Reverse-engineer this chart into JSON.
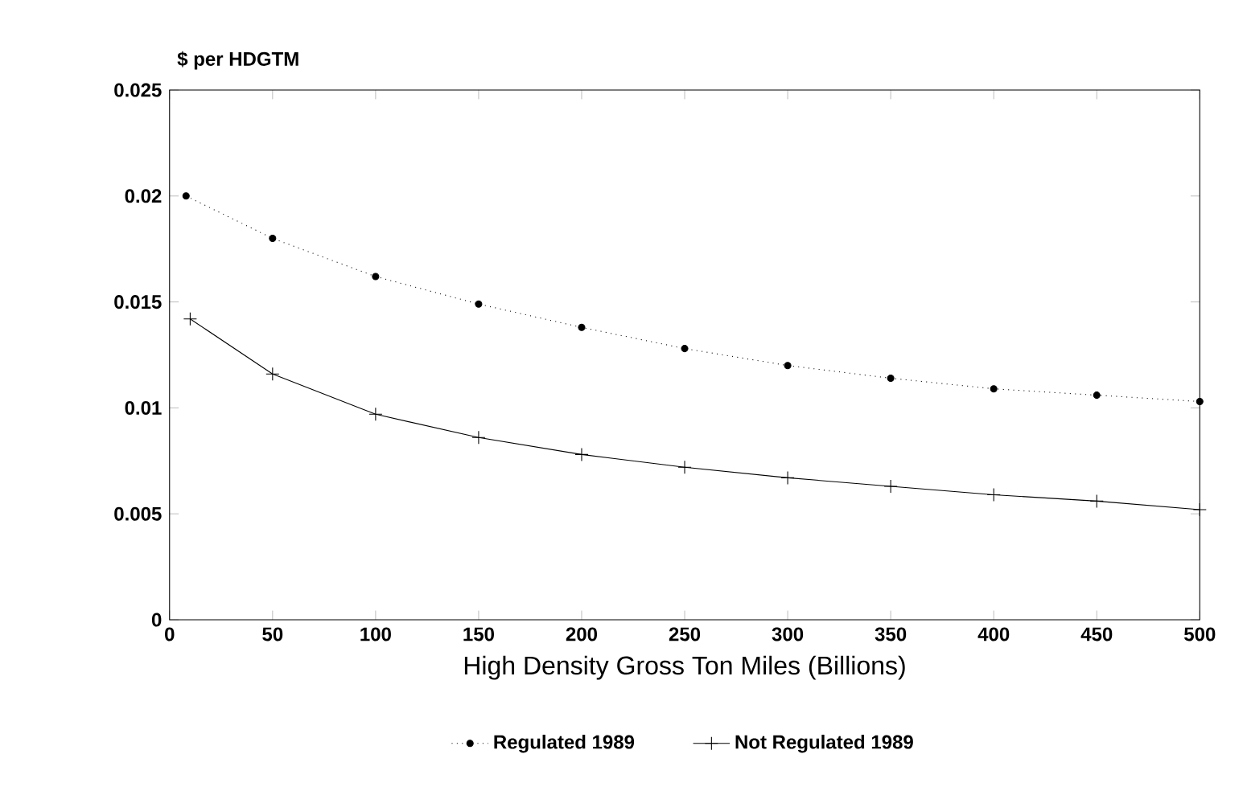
{
  "chart_data": {
    "type": "line",
    "ylabel": "$ per HDGTM",
    "xlabel": "High Density Gross Ton Miles (Billions)",
    "xlim": [
      0,
      500
    ],
    "xticks": [
      0,
      50,
      100,
      150,
      200,
      250,
      300,
      350,
      400,
      450,
      500
    ],
    "ylim": [
      0,
      0.025
    ],
    "yticks": [
      0,
      0.005,
      0.01,
      0.015,
      0.02,
      0.025
    ],
    "grid": false,
    "legend": "bottom",
    "series": [
      {
        "name": "Regulated 1989",
        "color": "#000000",
        "marker": "circle",
        "line_style": "dotted",
        "x": [
          8,
          50,
          100,
          150,
          200,
          250,
          300,
          350,
          400,
          450,
          500
        ],
        "values": [
          0.02,
          0.018,
          0.0162,
          0.0149,
          0.0138,
          0.0128,
          0.012,
          0.0114,
          0.0109,
          0.0106,
          0.0103
        ]
      },
      {
        "name": "Not Regulated 1989",
        "color": "#000000",
        "marker": "cross",
        "line_style": "solid",
        "x": [
          10,
          50,
          100,
          150,
          200,
          250,
          300,
          350,
          400,
          450,
          500
        ],
        "values": [
          0.0142,
          0.0116,
          0.0097,
          0.0086,
          0.0078,
          0.0072,
          0.0067,
          0.0063,
          0.0059,
          0.0056,
          0.0052
        ]
      }
    ]
  }
}
